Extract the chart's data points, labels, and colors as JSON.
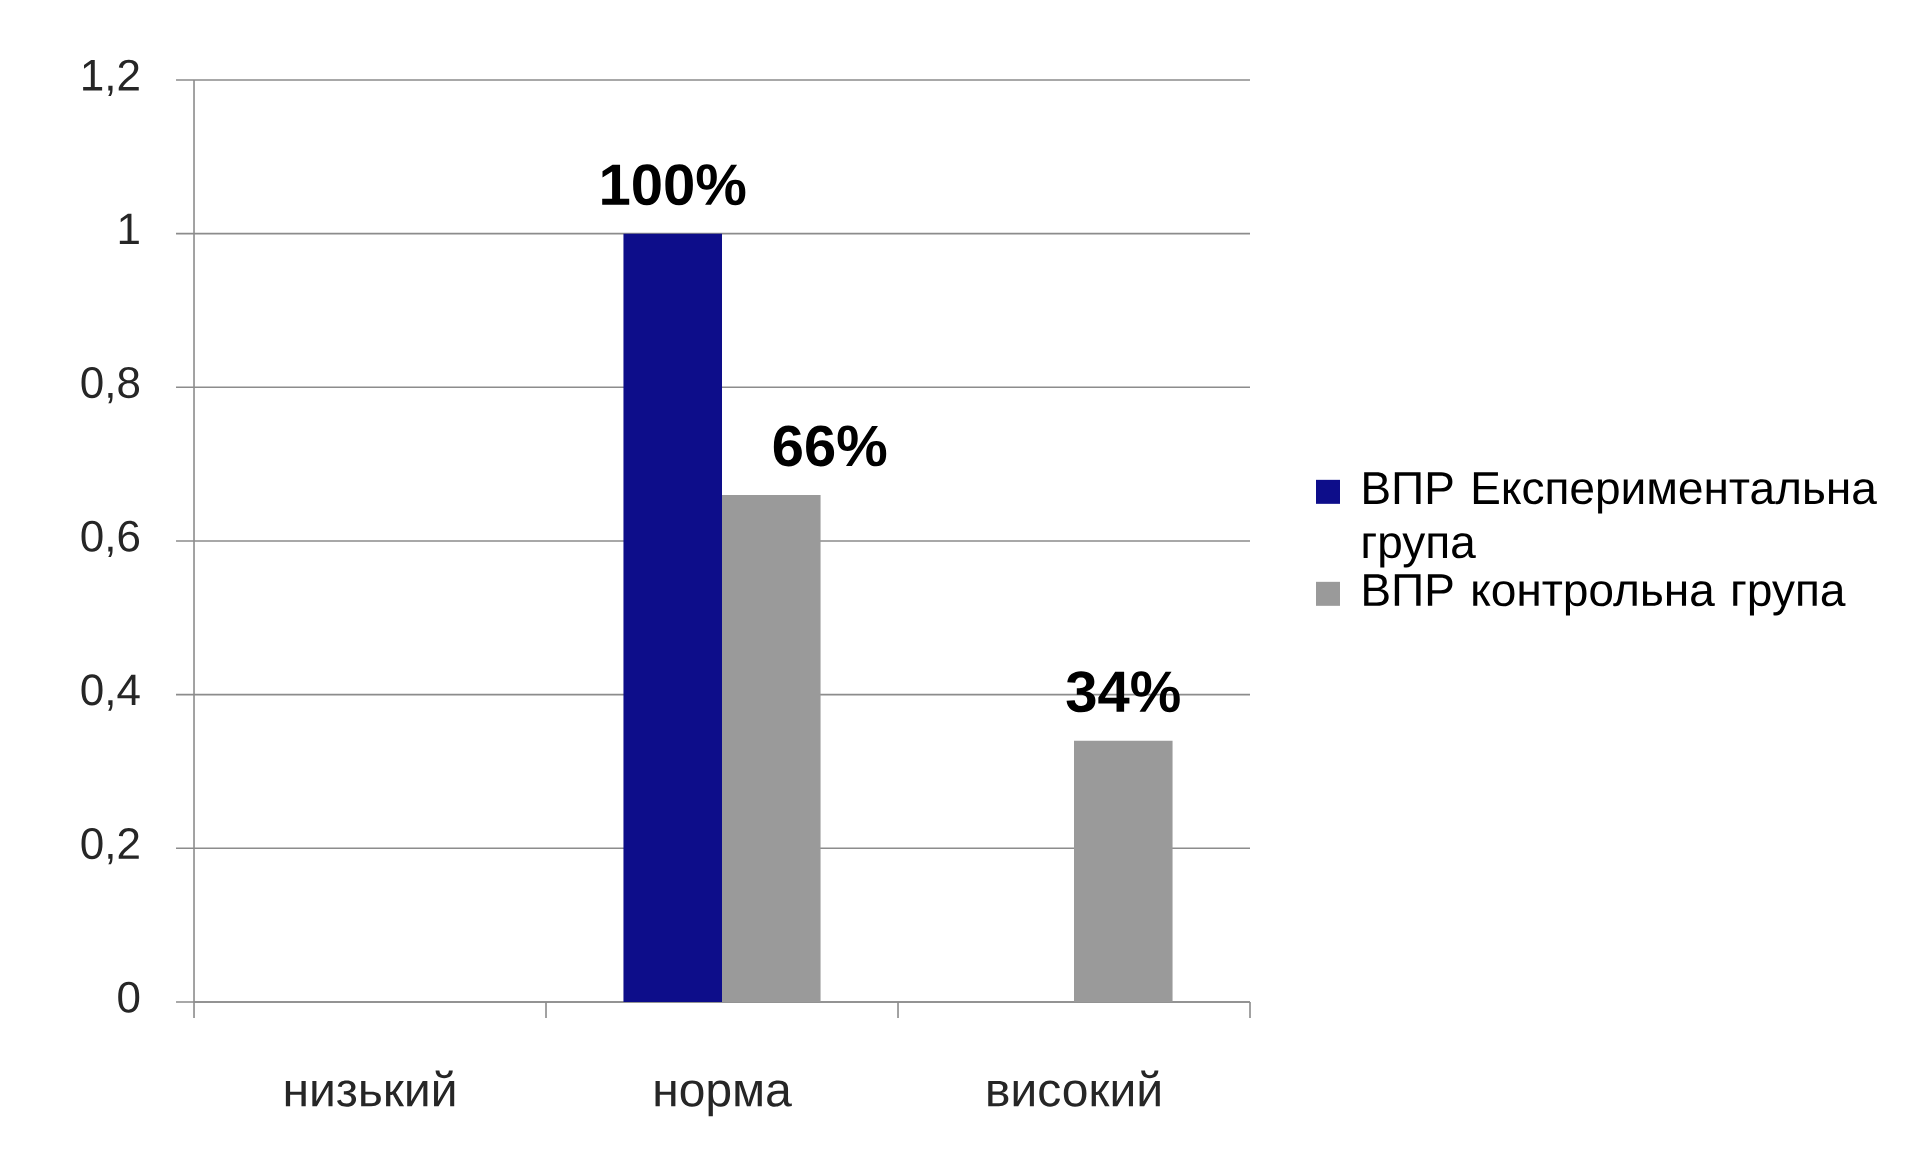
{
  "chart_data": {
    "type": "bar",
    "categories": [
      "низький",
      "норма",
      "високий"
    ],
    "series": [
      {
        "name": "ВПР Експериментальна група",
        "color": "#0d0d8a",
        "values": [
          null,
          1,
          null
        ],
        "value_labels": [
          null,
          "100%",
          null
        ]
      },
      {
        "name": "ВПР контрольна група",
        "color": "#9a9a9a",
        "values": [
          null,
          0.66,
          0.34
        ],
        "value_labels": [
          null,
          "66%",
          "34%"
        ]
      }
    ],
    "ylim": [
      0,
      1.2
    ],
    "yticks": [
      0,
      {
        "value": 0.2,
        "label": "0,2"
      },
      {
        "value": 0.4,
        "label": "0,4"
      },
      {
        "value": 0.6,
        "label": "0,6"
      },
      {
        "value": 0.8,
        "label": "0,8"
      },
      1,
      {
        "value": 1.2,
        "label": "1,2"
      }
    ],
    "grid": "y",
    "legend": "right"
  }
}
